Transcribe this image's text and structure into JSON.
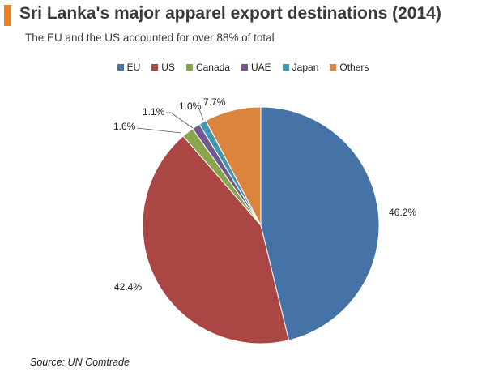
{
  "title": "Sri Lanka's major apparel export destinations (2014)",
  "subtitle": "The EU and the US accounted for over 88% of total",
  "source": "Source: UN Comtrade",
  "accent_color": "#e8832b",
  "chart_data": {
    "type": "pie",
    "categories": [
      "EU",
      "US",
      "Canada",
      "UAE",
      "Japan",
      "Others"
    ],
    "values": [
      46.2,
      42.4,
      1.6,
      1.1,
      1.0,
      7.7
    ],
    "value_labels": [
      "46.2%",
      "42.4%",
      "1.6%",
      "1.1%",
      "1.0%",
      "7.7%"
    ],
    "colors": [
      "#4572a7",
      "#aa4643",
      "#89a54e",
      "#71588f",
      "#4198af",
      "#db843d"
    ],
    "start_angle_deg": 0,
    "direction": "clockwise",
    "legend_position": "top"
  }
}
